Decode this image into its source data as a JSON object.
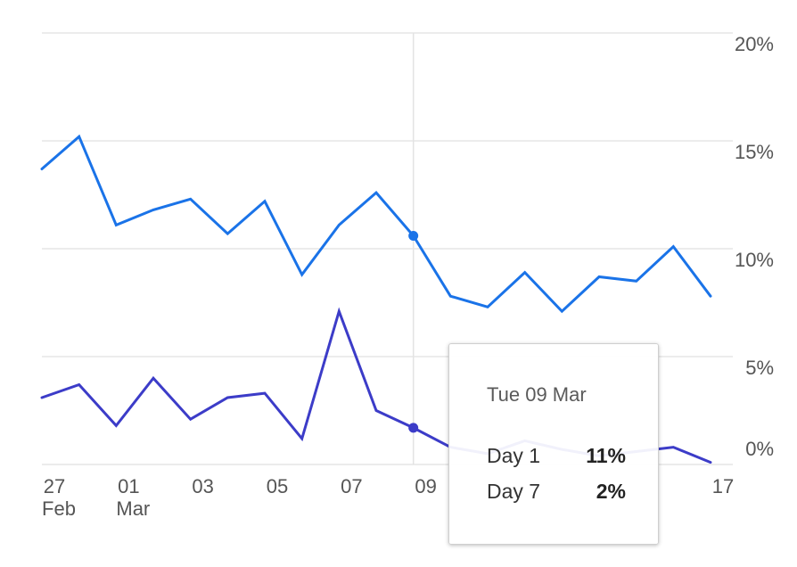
{
  "chart_data": {
    "type": "line",
    "x": [
      "2021-02-27",
      "2021-02-28",
      "2021-03-01",
      "2021-03-02",
      "2021-03-03",
      "2021-03-04",
      "2021-03-05",
      "2021-03-06",
      "2021-03-07",
      "2021-03-08",
      "2021-03-09",
      "2021-03-10",
      "2021-03-11",
      "2021-03-12",
      "2021-03-13",
      "2021-03-14",
      "2021-03-15",
      "2021-03-16",
      "2021-03-17"
    ],
    "x_tick_labels": [
      {
        "x": "2021-02-27",
        "day": "27",
        "month": "Feb"
      },
      {
        "x": "2021-03-01",
        "day": "01",
        "month": "Mar"
      },
      {
        "x": "2021-03-03",
        "day": "03",
        "month": ""
      },
      {
        "x": "2021-03-05",
        "day": "05",
        "month": ""
      },
      {
        "x": "2021-03-07",
        "day": "07",
        "month": ""
      },
      {
        "x": "2021-03-09",
        "day": "09",
        "month": ""
      },
      {
        "x": "2021-03-17",
        "day": "17",
        "month": ""
      }
    ],
    "y_ticks": [
      "0%",
      "5%",
      "10%",
      "15%",
      "20%"
    ],
    "y_tick_values": [
      0,
      5,
      10,
      15,
      20
    ],
    "ylim": [
      0,
      20
    ],
    "grid": true,
    "series": [
      {
        "name": "Day 1",
        "color": "#1a73e8",
        "values": [
          13.7,
          15.2,
          11.1,
          11.8,
          12.3,
          10.7,
          12.2,
          8.8,
          11.1,
          12.6,
          10.6,
          7.8,
          7.3,
          8.9,
          7.1,
          8.7,
          8.5,
          10.1,
          7.8
        ]
      },
      {
        "name": "Day 7",
        "color": "#3c3cc8",
        "values": [
          3.1,
          3.7,
          1.8,
          4.0,
          2.1,
          3.1,
          3.3,
          1.2,
          7.1,
          2.5,
          1.7,
          0.8,
          0.5,
          1.1,
          0.7,
          0.4,
          0.6,
          0.8,
          0.1
        ]
      }
    ],
    "highlight": {
      "x": "2021-03-09"
    }
  },
  "tooltip": {
    "date": "Tue 09 Mar",
    "rows": [
      {
        "label": "Day 1",
        "value": "11%"
      },
      {
        "label": "Day 7",
        "value": "2%"
      }
    ]
  }
}
